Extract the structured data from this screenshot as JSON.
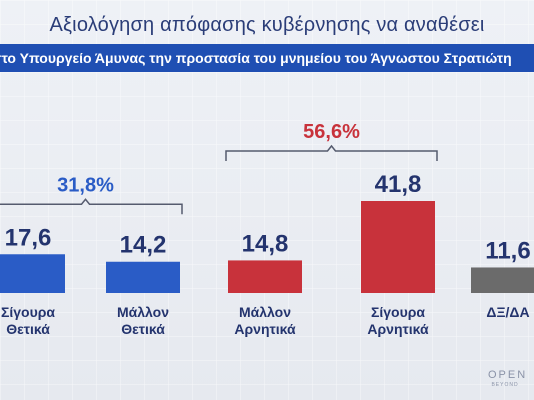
{
  "title": "Αξιολόγηση απόφασης κυβέρνησης να αναθέσει",
  "subtitle": "στο Υπουργείο Άμυνας την προστασία του μνημείου του Άγνωστου Στρατιώτη",
  "brand": {
    "line1": "OPEN",
    "line2": "BEYOND"
  },
  "colors": {
    "positive": "#2a5cc6",
    "negative": "#c8323b",
    "neutral": "#6b6b6b",
    "value_text": "#24346e",
    "group_pos": "#2a5cc6",
    "group_neg": "#c8323b"
  },
  "chart_data": {
    "type": "bar",
    "categories": [
      "Σίγουρα Θετικά",
      "Μάλλον Θετικά",
      "Μάλλον Αρνητικά",
      "Σίγουρα Αρνητικά",
      "ΔΞ/ΔΑ"
    ],
    "values": [
      17.6,
      14.2,
      14.8,
      41.8,
      11.6
    ],
    "value_labels": [
      "17,6",
      "14,2",
      "14,8",
      "41,8",
      "11,6"
    ],
    "colors": [
      "#2a5cc6",
      "#2a5cc6",
      "#c8323b",
      "#c8323b",
      "#6b6b6b"
    ],
    "groups": [
      {
        "label": "31,8%",
        "members": [
          0,
          1
        ],
        "color": "#2a5cc6"
      },
      {
        "label": "56,6%",
        "members": [
          2,
          3
        ],
        "color": "#c8323b"
      }
    ],
    "ylim": [
      0,
      45
    ],
    "xlabel": "",
    "ylabel": ""
  }
}
